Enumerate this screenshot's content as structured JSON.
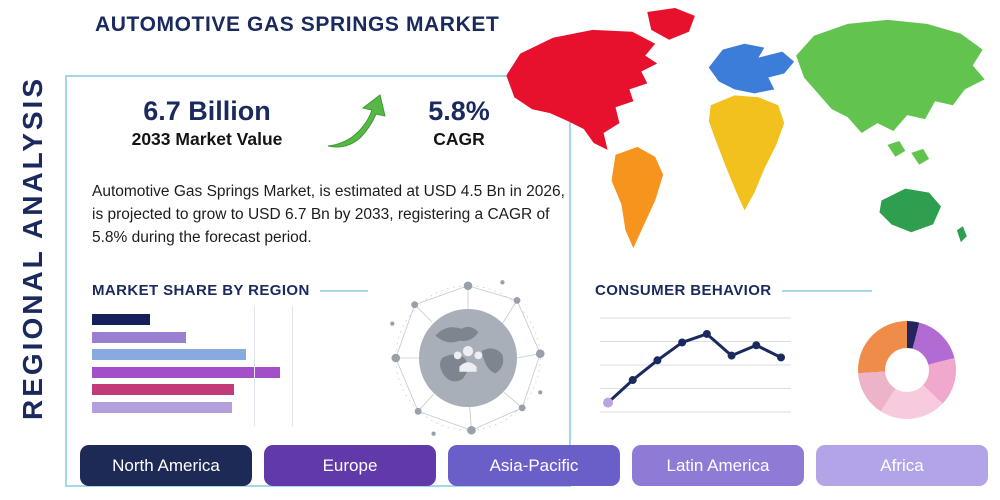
{
  "title": "AUTOMOTIVE GAS SPRINGS MARKET",
  "side_label": "REGIONAL ANALYSIS",
  "summary": {
    "market_value": "6.7 Billion",
    "market_value_caption": "2033 Market Value",
    "cagr_value": "5.8%",
    "cagr_caption": "CAGR",
    "description": "Automotive Gas Springs Market, is estimated at USD 4.5 Bn in 2026, is projected to grow to USD 6.7 Bn by 2033, registering a CAGR of 5.8% during the forecast period."
  },
  "sections": {
    "market_share_title": "MARKET SHARE BY REGION",
    "consumer_behavior_title": "CONSUMER BEHAVIOR"
  },
  "regions": [
    {
      "label": "North America",
      "color": "#1e2a56"
    },
    {
      "label": "Europe",
      "color": "#6239a8"
    },
    {
      "label": "Asia-Pacific",
      "color": "#6a5ec9"
    },
    {
      "label": "Latin America",
      "color": "#8f7ad6"
    },
    {
      "label": "Africa",
      "color": "#b2a4e6"
    }
  ],
  "map": {
    "colors": {
      "north_america": "#e8112d",
      "greenland": "#e8112d",
      "south_america": "#f7941d",
      "europe": "#3b7dd8",
      "africa": "#f2c11e",
      "asia": "#62c44e",
      "se_asia_1": "#62c44e",
      "se_asia_2": "#62c44e",
      "australia": "#2e9e4f",
      "new_zealand": "#2e9e4f"
    }
  },
  "chart_data": [
    {
      "type": "bar",
      "title": "Market Share by Region",
      "orientation": "horizontal",
      "values": [
        29,
        47,
        77,
        94,
        71,
        70
      ],
      "value_unit": "relative bar width % (bars unlabeled in image)",
      "colors": [
        "#14205a",
        "#9a7fd1",
        "#88abdf",
        "#a24fc8",
        "#c23a7a",
        "#b29fdc"
      ],
      "xlabel": "",
      "ylabel": "",
      "grid": true
    },
    {
      "type": "line",
      "title": "Consumer Behavior",
      "x": [
        1,
        2,
        3,
        4,
        5,
        6,
        7,
        8
      ],
      "values": [
        10,
        34,
        55,
        74,
        83,
        60,
        71,
        58
      ],
      "value_unit": "relative height % (axes unlabeled in image)",
      "line_color": "#1b2a5e",
      "point_color": "#1b2a5e",
      "first_point_color": "#b9a5e3",
      "grid": true,
      "gridline_count": 5
    },
    {
      "type": "pie",
      "title": "Regional split (donut)",
      "donut": true,
      "slices": [
        {
          "color": "#23265e",
          "value": 4
        },
        {
          "color": "#b36bd4",
          "value": 17
        },
        {
          "color": "#f0a8cc",
          "value": 16
        },
        {
          "color": "#f7cade",
          "value": 22
        },
        {
          "color": "#edb3c8",
          "value": 15
        },
        {
          "color": "#f08c4a",
          "value": 26
        }
      ]
    }
  ],
  "theme": {
    "navy": "#1b2a5e",
    "box_border": "#a4d8e9",
    "heading_rule": "#a4d8e9",
    "arrow_green": "#57b847",
    "background": "#ffffff"
  }
}
